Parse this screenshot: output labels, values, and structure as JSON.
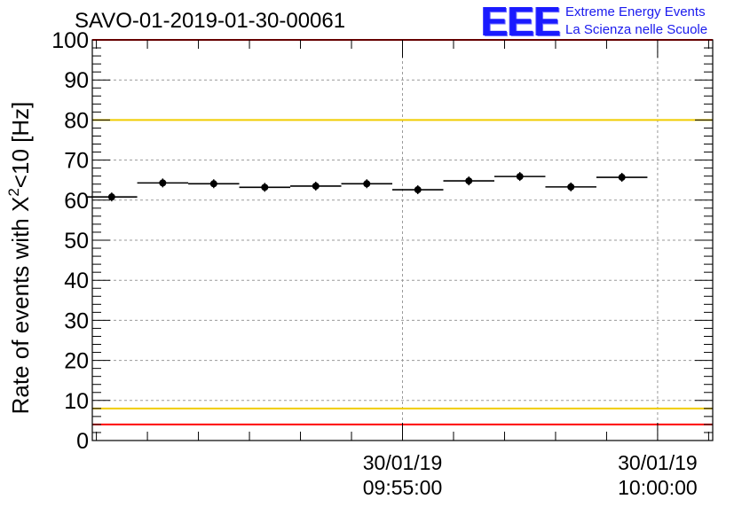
{
  "header": {
    "run_id": "SAVO-01-2019-01-30-00061",
    "logo_mark": "EEE",
    "logo_line1": "Extreme Energy Events",
    "logo_line2": "La Scienza nelle Scuole"
  },
  "chart_data": {
    "type": "scatter",
    "title": "SAVO-01-2019-01-30-00061",
    "ylabel_prefix": "Rate of events with X",
    "ylabel_sup": "2",
    "ylabel_suffix": "<10 [Hz]",
    "ylim": [
      0,
      100
    ],
    "yticks": [
      0,
      10,
      20,
      30,
      40,
      50,
      60,
      70,
      80,
      90,
      100
    ],
    "x_range_minutes": [
      -6.08,
      6.08
    ],
    "x_major_ticks": [
      {
        "t": 0,
        "date": "30/01/19",
        "time": "09:55:00"
      },
      {
        "t": 5,
        "date": "30/01/19",
        "time": "10:00:00"
      }
    ],
    "x_minor_step_minutes": 1,
    "x_unit": "minutes relative to 30/01/19 09:55:00",
    "points": [
      {
        "x": -5.7,
        "y": 60.8
      },
      {
        "x": -4.7,
        "y": 64.3
      },
      {
        "x": -3.7,
        "y": 64.1
      },
      {
        "x": -2.7,
        "y": 63.2
      },
      {
        "x": -1.7,
        "y": 63.5
      },
      {
        "x": -0.7,
        "y": 64.1
      },
      {
        "x": 0.3,
        "y": 62.6
      },
      {
        "x": 1.3,
        "y": 64.8
      },
      {
        "x": 2.3,
        "y": 65.9
      },
      {
        "x": 3.3,
        "y": 63.3
      },
      {
        "x": 4.3,
        "y": 65.7
      }
    ],
    "bin_width_minutes": 1,
    "reference_lines": [
      {
        "y": 4,
        "color": "#ff0000"
      },
      {
        "y": 8,
        "color": "#f0cc00"
      },
      {
        "y": 80,
        "color": "#f0cc00"
      },
      {
        "y": 100,
        "color": "#ff0000"
      }
    ],
    "grid": true
  }
}
